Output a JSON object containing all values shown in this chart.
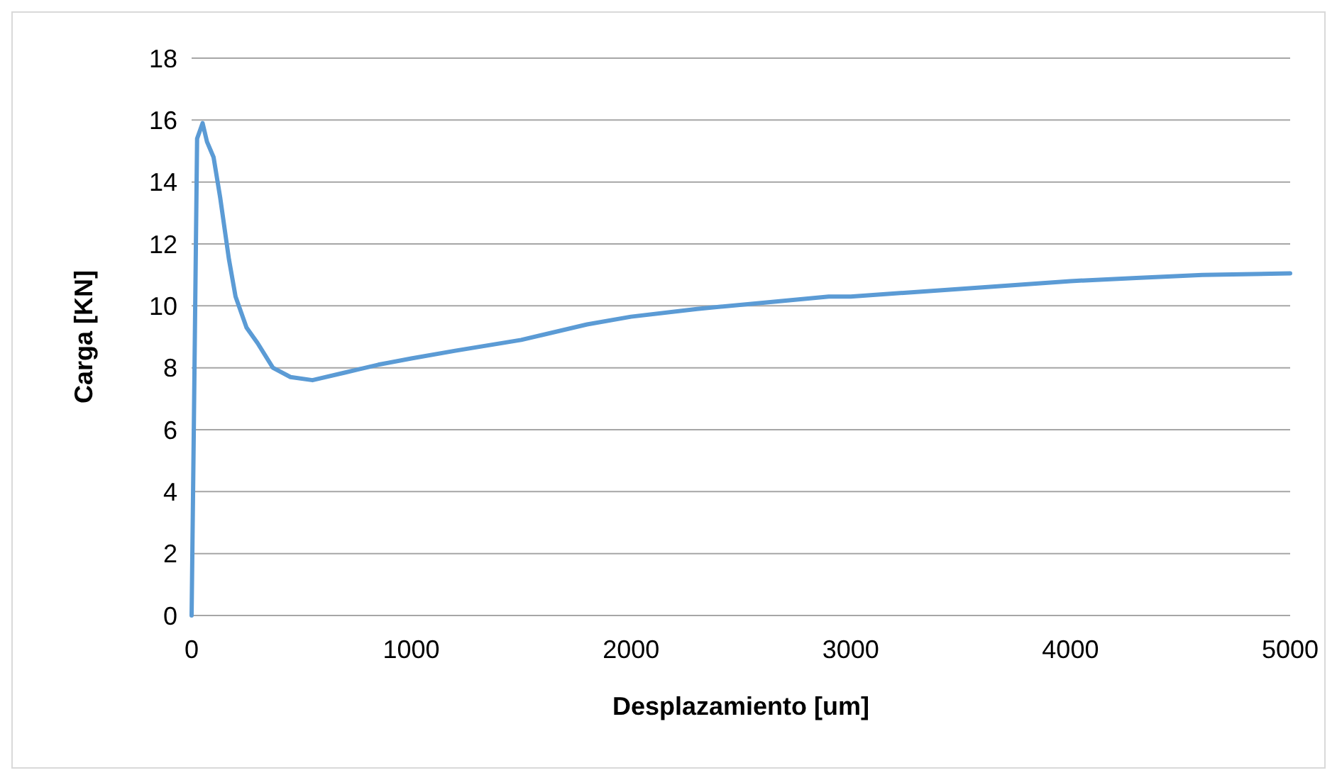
{
  "chart_data": {
    "type": "line",
    "xlabel": "Desplazamiento [um]",
    "ylabel": "Carga [KN]",
    "x": [
      0,
      5,
      10,
      25,
      50,
      70,
      100,
      130,
      170,
      200,
      250,
      300,
      370,
      450,
      550,
      700,
      850,
      1000,
      1200,
      1500,
      1800,
      2000,
      2300,
      2600,
      2900,
      3000,
      3300,
      3600,
      4000,
      4300,
      4600,
      5000
    ],
    "series": [
      {
        "color": "#5b9bd5",
        "values": [
          0,
          3,
          6,
          15.4,
          15.9,
          15.3,
          14.8,
          13.5,
          11.5,
          10.3,
          9.3,
          8.8,
          8.0,
          7.7,
          7.6,
          7.85,
          8.1,
          8.3,
          8.55,
          8.9,
          9.4,
          9.65,
          9.9,
          10.1,
          10.3,
          10.3,
          10.45,
          10.6,
          10.8,
          10.9,
          11.0,
          11.05
        ]
      }
    ],
    "xlim": [
      0,
      5000
    ],
    "xticks": [
      0,
      1000,
      2000,
      3000,
      4000,
      5000
    ],
    "ylim": [
      0,
      18
    ],
    "yticks": [
      0,
      2,
      4,
      6,
      8,
      10,
      12,
      14,
      16,
      18
    ],
    "grid": "y",
    "marker": "none",
    "line_style": "solid"
  }
}
